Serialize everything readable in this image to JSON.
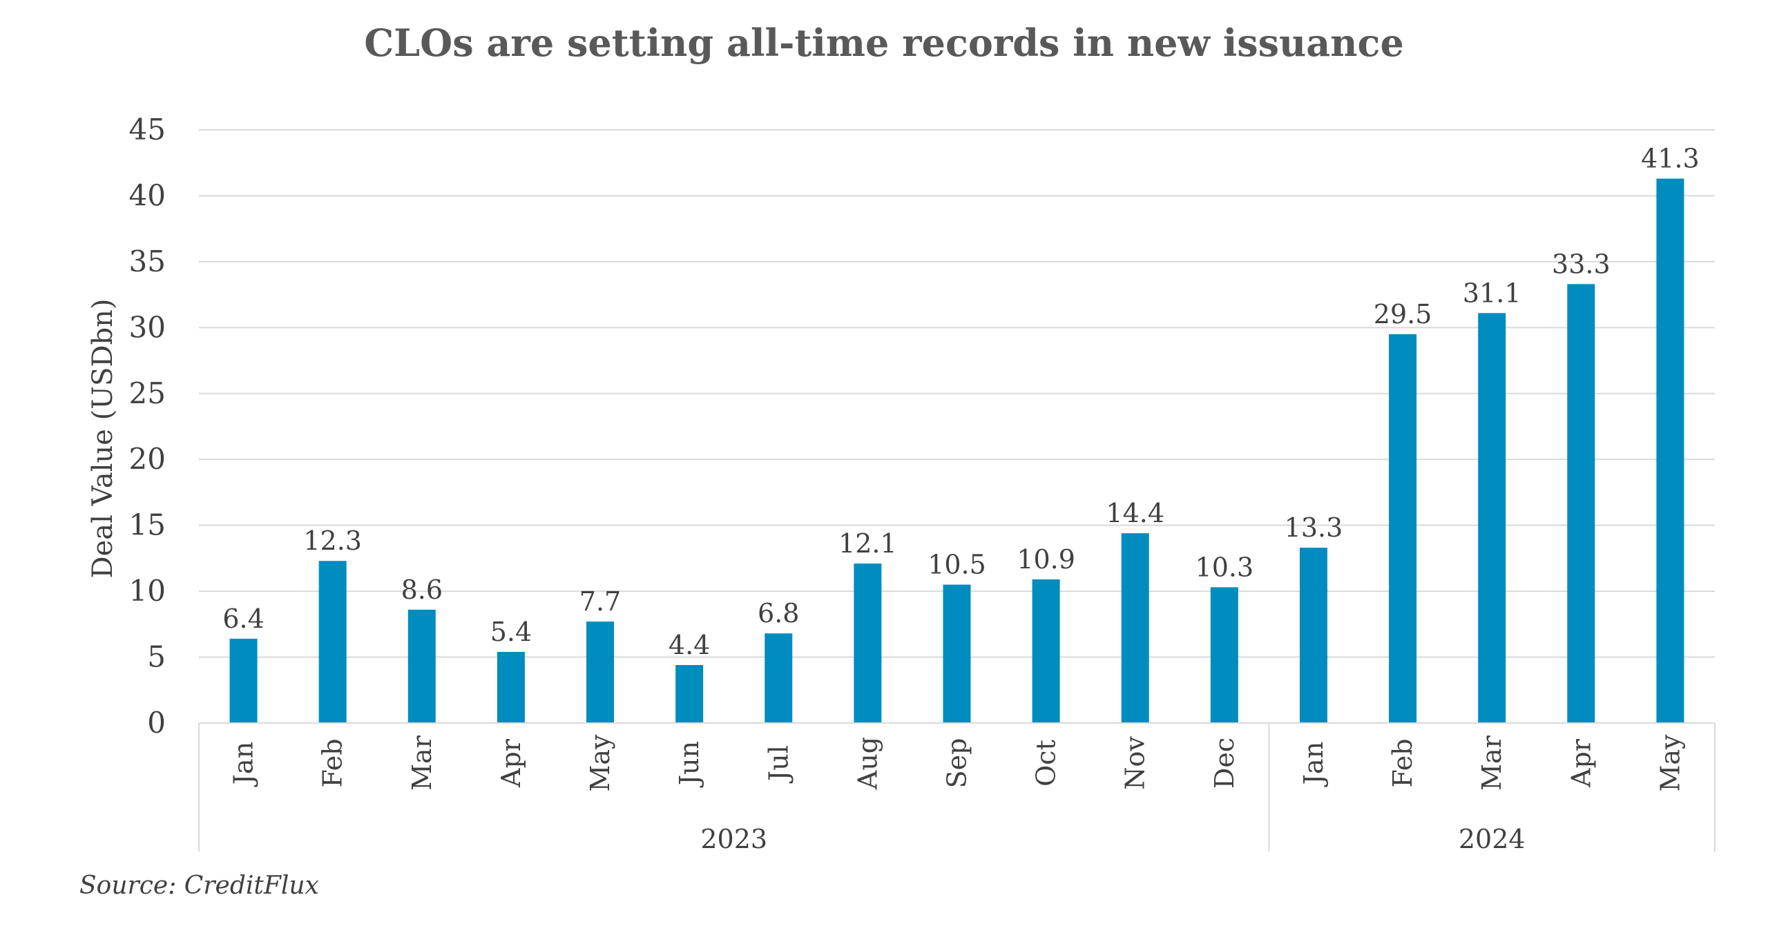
{
  "chart_data": {
    "type": "bar",
    "title": "CLOs are setting all-time records in new issuance",
    "ylabel": "Deal Value (USDbn)",
    "xlabel": "",
    "ylim": [
      0,
      45
    ],
    "yticks": [
      0,
      5,
      10,
      15,
      20,
      25,
      30,
      35,
      40,
      45
    ],
    "grid": true,
    "bar_color": "#008CBF",
    "groups": [
      {
        "label": "2023",
        "count": 12
      },
      {
        "label": "2024",
        "count": 5
      }
    ],
    "categories": [
      "Jan",
      "Feb",
      "Mar",
      "Apr",
      "May",
      "Jun",
      "Jul",
      "Aug",
      "Sep",
      "Oct",
      "Nov",
      "Dec",
      "Jan",
      "Feb",
      "Mar",
      "Apr",
      "May"
    ],
    "values": [
      6.4,
      12.3,
      8.6,
      5.4,
      7.7,
      4.4,
      6.8,
      12.1,
      10.5,
      10.9,
      14.4,
      10.3,
      13.3,
      29.5,
      31.1,
      33.3,
      41.3
    ],
    "data_labels": [
      "6.4",
      "12.3",
      "8.6",
      "5.4",
      "7.7",
      "4.4",
      "6.8",
      "12.1",
      "10.5",
      "10.9",
      "14.4",
      "10.3",
      "13.3",
      "29.5",
      "31.1",
      "33.3",
      "41.3"
    ]
  },
  "source": "Source: CreditFlux"
}
